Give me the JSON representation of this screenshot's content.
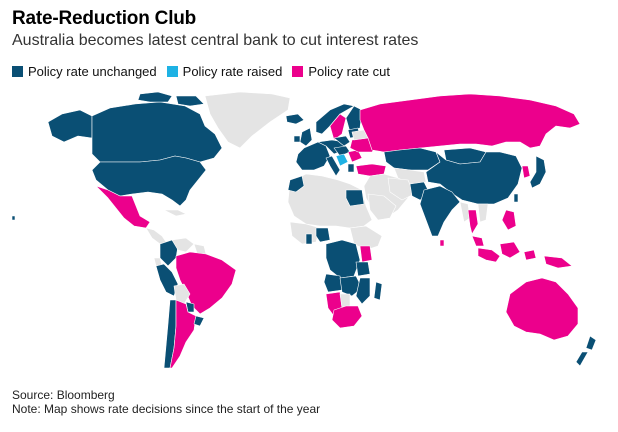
{
  "title": "Rate-Reduction Club",
  "subtitle": "Australia becomes latest central bank to cut interest rates",
  "legend": [
    {
      "label": "Policy rate unchanged",
      "color": "#0a4f74"
    },
    {
      "label": "Policy rate raised",
      "color": "#1eb2e4"
    },
    {
      "label": "Policy rate cut",
      "color": "#ec008c"
    }
  ],
  "colors": {
    "unchanged": "#0a4f74",
    "raised": "#1eb2e4",
    "cut": "#ec008c",
    "no_data": "#e4e4e4"
  },
  "footer": {
    "source": "Source: Bloomberg",
    "note": "Note: Map shows rate decisions since the start of the year"
  }
}
